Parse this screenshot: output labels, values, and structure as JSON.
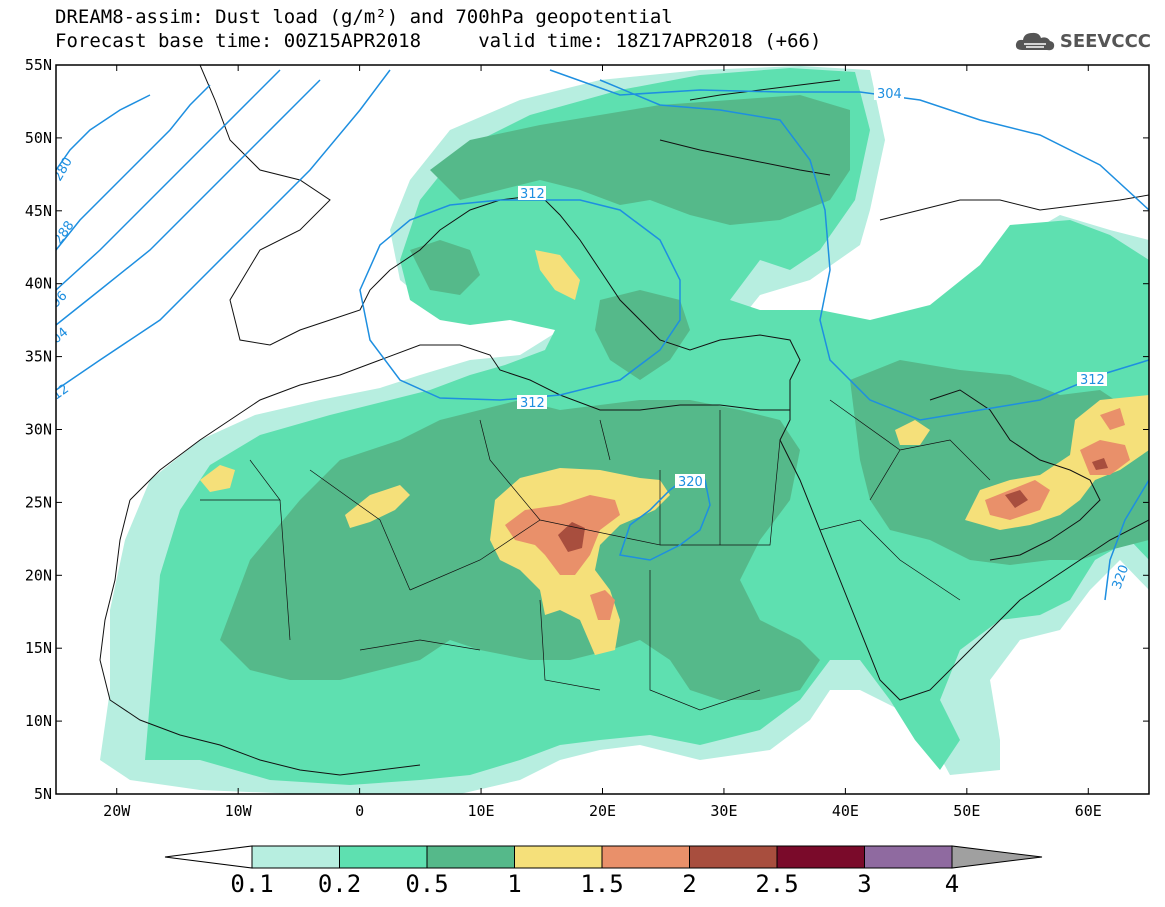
{
  "title": {
    "line1": "DREAM8-assim: Dust load (g/m²) and 700hPa geopotential",
    "line2": "Forecast base time: 00Z15APR2018     valid time: 18Z17APR2018 (+66)"
  },
  "logo": {
    "text": "SEEVCCC",
    "icon": "cloud-icon"
  },
  "axes": {
    "lon_ticks": [
      {
        "lon": -20,
        "label": "20W"
      },
      {
        "lon": -10,
        "label": "10W"
      },
      {
        "lon": 0,
        "label": "0"
      },
      {
        "lon": 10,
        "label": "10E"
      },
      {
        "lon": 20,
        "label": "20E"
      },
      {
        "lon": 30,
        "label": "30E"
      },
      {
        "lon": 40,
        "label": "40E"
      },
      {
        "lon": 50,
        "label": "50E"
      },
      {
        "lon": 60,
        "label": "60E"
      }
    ],
    "lat_ticks": [
      {
        "lat": 55,
        "label": "55N"
      },
      {
        "lat": 50,
        "label": "50N"
      },
      {
        "lat": 45,
        "label": "45N"
      },
      {
        "lat": 40,
        "label": "40N"
      },
      {
        "lat": 35,
        "label": "35N"
      },
      {
        "lat": 30,
        "label": "30N"
      },
      {
        "lat": 25,
        "label": "25N"
      },
      {
        "lat": 20,
        "label": "20N"
      },
      {
        "lat": 15,
        "label": "15N"
      },
      {
        "lat": 10,
        "label": "10N"
      },
      {
        "lat": 5,
        "label": "5N"
      }
    ],
    "lon_range": [
      -25,
      65
    ],
    "lat_range": [
      5,
      55
    ]
  },
  "colorbar": {
    "labels": [
      "0.1",
      "0.2",
      "0.5",
      "1",
      "1.5",
      "2",
      "2.5",
      "3",
      "4"
    ],
    "colors": [
      "#ffffff",
      "#b7eee0",
      "#5ee0b0",
      "#55b98a",
      "#f5e07a",
      "#e9906a",
      "#a84e3e",
      "#7a0a2a",
      "#8f6aa0",
      "#a0a0a0"
    ]
  },
  "contours": {
    "color": "#1e8fe0",
    "labels": [
      "304",
      "312",
      "312",
      "312",
      "320",
      "320",
      "280",
      "288",
      "96",
      "04",
      "12"
    ]
  }
}
